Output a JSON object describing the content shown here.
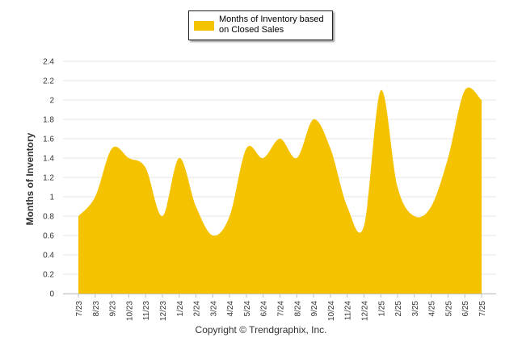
{
  "chart_data": {
    "type": "area",
    "title": "",
    "xlabel": "",
    "ylabel": "Months of Inventory",
    "ylim": [
      0,
      2.4
    ],
    "yticks": [
      "0",
      "0.2",
      "0.4",
      "0.6",
      "0.8",
      "1",
      "1.2",
      "1.4",
      "1.6",
      "1.8",
      "2",
      "2.2",
      "2.4"
    ],
    "grid": true,
    "legend_position": "top-center",
    "categories": [
      "7/23",
      "8/23",
      "9/23",
      "10/23",
      "11/23",
      "12/23",
      "1/24",
      "2/24",
      "3/24",
      "4/24",
      "5/24",
      "6/24",
      "7/24",
      "8/24",
      "9/24",
      "10/24",
      "11/24",
      "12/24",
      "1/25",
      "2/25",
      "3/25",
      "4/25",
      "5/25",
      "6/25",
      "7/25"
    ],
    "series": [
      {
        "name": "Months of Inventory based on Closed Sales",
        "color": "#F5C200",
        "values": [
          0.8,
          1.0,
          1.5,
          1.4,
          1.3,
          0.8,
          1.4,
          0.9,
          0.6,
          0.8,
          1.5,
          1.4,
          1.6,
          1.4,
          1.8,
          1.5,
          0.9,
          0.7,
          2.1,
          1.1,
          0.8,
          0.9,
          1.4,
          2.1,
          2.0
        ]
      }
    ]
  },
  "footer": {
    "copyright": "Copyright © Trendgraphix, Inc."
  }
}
